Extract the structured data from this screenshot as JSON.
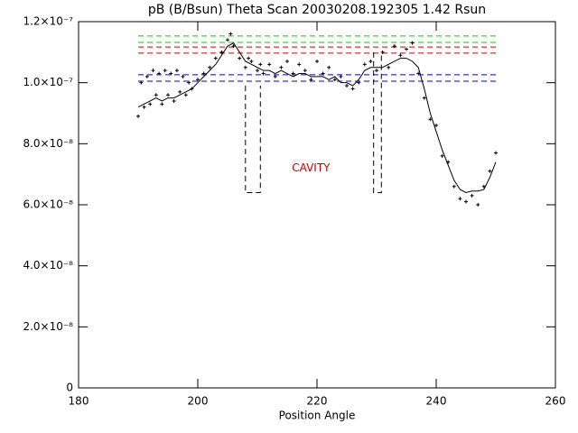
{
  "chart_data": {
    "type": "line",
    "title": "pB (B/Bsun) Theta Scan 20030208.192305 1.42 Rsun",
    "x_label": "Position Angle",
    "xlim": [
      180,
      260
    ],
    "ylim": [
      0,
      1.2e-07
    ],
    "xticks": [
      180,
      200,
      220,
      240,
      260
    ],
    "yticks": [
      0,
      {
        "value": 2e-08,
        "label": "2.0×10⁻⁸"
      },
      {
        "value": 4e-08,
        "label": "4.0×10⁻⁸"
      },
      {
        "value": 6e-08,
        "label": "6.0×10⁻⁸"
      },
      {
        "value": 8e-08,
        "label": "8.0×10⁻⁸"
      },
      {
        "value": 1e-07,
        "label": "1.0×10⁻⁷"
      },
      {
        "value": 1.2e-07,
        "label": "1.2×10⁻⁷"
      }
    ],
    "series": [
      {
        "color": "#000000",
        "x": [
          190,
          191,
          192,
          193,
          194,
          195,
          196,
          197,
          198,
          199,
          200,
          201,
          202,
          203,
          204,
          205,
          206,
          207,
          208,
          209,
          210,
          211,
          212,
          213,
          214,
          215,
          216,
          217,
          218,
          219,
          220,
          221,
          222,
          223,
          224,
          225,
          226,
          227,
          228,
          229,
          230,
          231,
          232,
          233,
          234,
          235,
          236,
          237,
          238,
          239,
          240,
          241,
          242,
          243,
          244,
          245,
          246,
          247,
          248,
          249,
          250
        ],
        "values": [
          9.2e-08,
          9.3e-08,
          9.4e-08,
          9.5e-08,
          9.4e-08,
          9.5e-08,
          9.5e-08,
          9.6e-08,
          9.7e-08,
          9.8e-08,
          1e-07,
          1.02e-07,
          1.04e-07,
          1.06e-07,
          1.09e-07,
          1.12e-07,
          1.13e-07,
          1.1e-07,
          1.07e-07,
          1.06e-07,
          1.05e-07,
          1.04e-07,
          1.04e-07,
          1.03e-07,
          1.04e-07,
          1.03e-07,
          1.02e-07,
          1.03e-07,
          1.03e-07,
          1.02e-07,
          1.02e-07,
          1.02e-07,
          1.01e-07,
          1.02e-07,
          1e-07,
          1e-07,
          9.9e-08,
          1.01e-07,
          1.04e-07,
          1.05e-07,
          1.05e-07,
          1.05e-07,
          1.06e-07,
          1.07e-07,
          1.08e-07,
          1.08e-07,
          1.07e-07,
          1.05e-07,
          9.8e-08,
          9e-08,
          8.4e-08,
          7.8e-08,
          7.3e-08,
          6.8e-08,
          6.5e-08,
          6.4e-08,
          6.45e-08,
          6.45e-08,
          6.5e-08,
          6.9e-08,
          7.4e-08
        ]
      }
    ],
    "points": {
      "color": "#000000",
      "x": [
        190,
        190.5,
        191,
        191.5,
        192,
        192.5,
        193,
        193.5,
        194,
        194.5,
        195,
        195.5,
        196,
        196.5,
        197,
        197.5,
        198,
        198.5,
        199,
        200,
        201,
        202,
        203,
        204,
        205,
        205.5,
        206,
        207,
        208,
        208.5,
        209,
        210,
        210.5,
        211,
        212,
        213,
        214,
        215,
        216,
        217,
        218,
        219,
        220,
        221,
        222,
        223,
        224,
        225,
        226,
        227,
        228,
        229,
        230,
        231,
        232,
        233,
        234,
        235,
        236,
        237,
        238,
        239,
        240,
        241,
        242,
        243,
        244,
        245,
        246,
        247,
        248,
        249,
        250
      ],
      "values": [
        8.9e-08,
        1e-07,
        9.2e-08,
        1.02e-07,
        9.3e-08,
        1.04e-07,
        9.6e-08,
        1.03e-07,
        9.3e-08,
        1.04e-07,
        9.6e-08,
        1.03e-07,
        9.4e-08,
        1.04e-07,
        9.7e-08,
        1.02e-07,
        9.6e-08,
        1e-07,
        9.8e-08,
        1.01e-07,
        1.03e-07,
        1.05e-07,
        1.08e-07,
        1.1e-07,
        1.14e-07,
        1.16e-07,
        1.12e-07,
        1.08e-07,
        1.05e-07,
        1.08e-07,
        1.07e-07,
        1.04e-07,
        1.06e-07,
        1.03e-07,
        1.06e-07,
        1.02e-07,
        1.05e-07,
        1.07e-07,
        1.03e-07,
        1.06e-07,
        1.04e-07,
        1.01e-07,
        1.07e-07,
        1.03e-07,
        1.05e-07,
        1.01e-07,
        1.02e-07,
        9.9e-08,
        9.8e-08,
        1e-07,
        1.06e-07,
        1.07e-07,
        1.04e-07,
        1.1e-07,
        1.05e-07,
        1.12e-07,
        1.09e-07,
        1.11e-07,
        1.13e-07,
        1.03e-07,
        9.5e-08,
        8.8e-08,
        8.6e-08,
        7.6e-08,
        7.4e-08,
        6.6e-08,
        6.2e-08,
        6.1e-08,
        6.3e-08,
        6e-08,
        6.6e-08,
        7.1e-08,
        7.7e-08
      ]
    },
    "reference_lines": [
      {
        "color": "#00cc00",
        "y": 1.153e-07,
        "x": [
          190,
          250
        ]
      },
      {
        "color": "#00cc00",
        "y": 1.132e-07,
        "x": [
          190,
          250
        ]
      },
      {
        "color": "#cc0000",
        "y": 1.117e-07,
        "x": [
          190,
          250
        ]
      },
      {
        "color": "#cc0000",
        "y": 1.097e-07,
        "x": [
          190,
          250
        ]
      },
      {
        "color": "#0000cc",
        "y": 1.026e-07,
        "x": [
          190,
          250
        ]
      },
      {
        "color": "#0000cc",
        "y": 1.005e-07,
        "x": [
          190,
          250
        ]
      }
    ],
    "boxes": [
      {
        "x": [
          208,
          210.5
        ],
        "y": [
          6.4e-08,
          9.9e-08
        ]
      },
      {
        "x": [
          229.5,
          230.8
        ],
        "y": [
          6.4e-08,
          1.1e-07
        ]
      }
    ],
    "annotation": {
      "text": "CAVITY",
      "x": 219,
      "y": 7.2e-08,
      "color": "#cc0000"
    }
  }
}
